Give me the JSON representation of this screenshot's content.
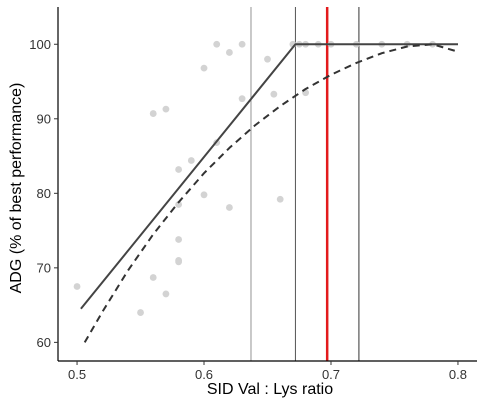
{
  "chart_data": {
    "type": "scatter",
    "title": "",
    "xlabel": "SID Val : Lys ratio",
    "ylabel": "ADG (% of best performance)",
    "xlim": [
      0.485,
      0.815
    ],
    "ylim": [
      57.5,
      105
    ],
    "x_ticks": [
      0.5,
      0.6,
      0.7,
      0.8
    ],
    "x_tick_labels": [
      "0.5",
      "0.6",
      "0.7",
      "0.8"
    ],
    "y_ticks": [
      60,
      70,
      80,
      90,
      100
    ],
    "y_tick_labels": [
      "60",
      "70",
      "80",
      "90",
      "100"
    ],
    "grid": false,
    "legend": "none",
    "points": {
      "color": "#d3d3d3",
      "x": [
        0.5,
        0.55,
        0.56,
        0.56,
        0.57,
        0.57,
        0.58,
        0.58,
        0.58,
        0.58,
        0.58,
        0.59,
        0.6,
        0.6,
        0.61,
        0.61,
        0.62,
        0.62,
        0.63,
        0.63,
        0.65,
        0.655,
        0.66,
        0.67,
        0.675,
        0.68,
        0.68,
        0.69,
        0.7,
        0.72,
        0.74,
        0.76,
        0.78
      ],
      "y": [
        67.5,
        64,
        68.7,
        90.7,
        91.3,
        66.5,
        71,
        70.8,
        73.8,
        78.5,
        83.2,
        84.4,
        79.8,
        96.8,
        86.8,
        100,
        98.9,
        78.1,
        92.7,
        100,
        98,
        93.3,
        79.2,
        100,
        100,
        100,
        93.5,
        100,
        100,
        100,
        100,
        100,
        100
      ]
    },
    "series": [
      {
        "style": "solid",
        "color": "#444444",
        "x": [
          0.503,
          0.672,
          0.8
        ],
        "y": [
          64.5,
          100,
          100
        ]
      },
      {
        "style": "dashed",
        "color": "#333333",
        "x": [
          0.506,
          0.52,
          0.54,
          0.56,
          0.58,
          0.6,
          0.62,
          0.64,
          0.66,
          0.68,
          0.7,
          0.72,
          0.74,
          0.76,
          0.78,
          0.8
        ],
        "y": [
          60,
          64.1,
          69.6,
          74.5,
          78.8,
          82.7,
          86.1,
          89.1,
          91.7,
          94,
          95.9,
          97.5,
          98.8,
          99.7,
          100,
          99
        ]
      }
    ],
    "vlines": [
      {
        "x": 0.637,
        "color": "#777777",
        "width": 0.8
      },
      {
        "x": 0.672,
        "color": "#555555",
        "width": 1
      },
      {
        "x": 0.697,
        "color": "#e31a1c",
        "width": 2.5
      },
      {
        "x": 0.722,
        "color": "#333333",
        "width": 1
      }
    ]
  }
}
